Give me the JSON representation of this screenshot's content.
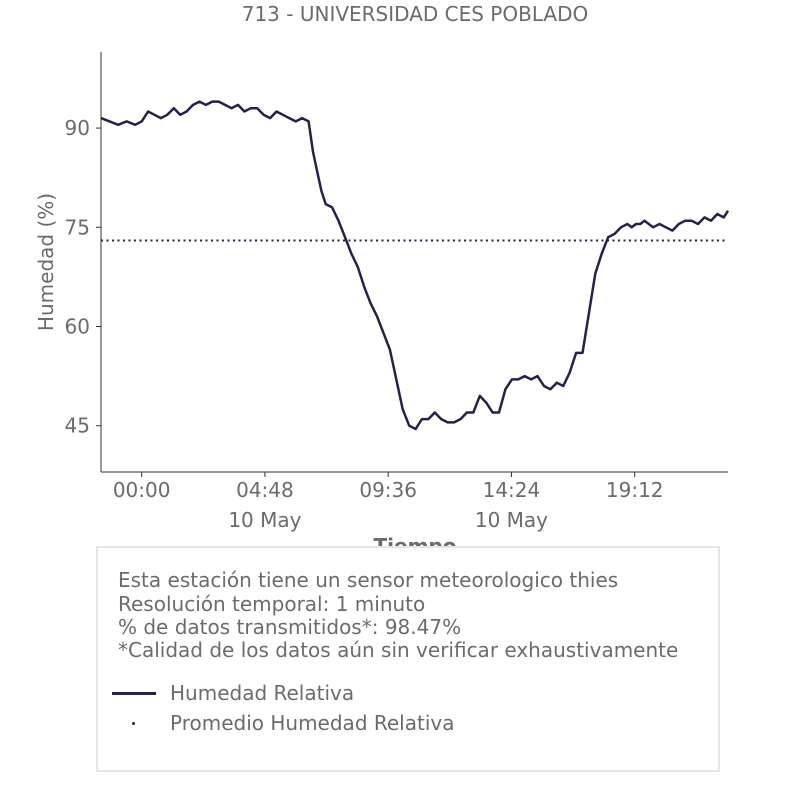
{
  "chart_data": {
    "type": "line",
    "title": "713 - UNIVERSIDAD CES POBLADO",
    "xlabel": "Tiempo",
    "ylabel": "Humedad (%)",
    "x_start": "2024-05-09 22:25",
    "x_end": "2024-05-10 22:50",
    "x_ticks": [
      "00:00",
      "04:48",
      "09:36",
      "14:24",
      "19:12"
    ],
    "x_tick_minutes": [
      0,
      288,
      576,
      864,
      1152
    ],
    "x_date_labels": [
      {
        "label": "10 May",
        "at_tick": "04:48"
      },
      {
        "label": "10 May",
        "at_tick": "14:24"
      }
    ],
    "y_ticks": [
      45,
      60,
      75,
      90
    ],
    "ylim": [
      38,
      101.5
    ],
    "xlim_minutes": [
      -95,
      1370
    ],
    "grid": false,
    "series": [
      {
        "name": "Humedad Relativa",
        "color": "#23234a",
        "style": "solid",
        "x_minutes": [
          -95,
          -75,
          -55,
          -35,
          -15,
          0,
          15,
          30,
          45,
          60,
          75,
          90,
          105,
          120,
          135,
          150,
          165,
          180,
          195,
          210,
          225,
          240,
          255,
          270,
          285,
          300,
          315,
          330,
          345,
          360,
          375,
          390,
          400,
          410,
          420,
          430,
          445,
          460,
          475,
          490,
          505,
          520,
          535,
          550,
          565,
          580,
          595,
          610,
          625,
          640,
          655,
          670,
          685,
          700,
          715,
          730,
          745,
          760,
          775,
          790,
          805,
          820,
          835,
          850,
          865,
          880,
          895,
          910,
          925,
          940,
          955,
          970,
          985,
          1000,
          1015,
          1030,
          1045,
          1060,
          1075,
          1090,
          1105,
          1120,
          1135,
          1145,
          1155,
          1165,
          1175,
          1185,
          1195,
          1210,
          1225,
          1240,
          1255,
          1270,
          1285,
          1300,
          1315,
          1330,
          1345,
          1360,
          1370
        ],
        "values": [
          91.5,
          91,
          90.5,
          91,
          90.5,
          91,
          92.5,
          92,
          91.5,
          92,
          93,
          92,
          92.5,
          93.5,
          94,
          93.5,
          94,
          94,
          93.5,
          93,
          93.5,
          92.5,
          93,
          93,
          92,
          91.5,
          92.5,
          92,
          91.5,
          91,
          91.5,
          91,
          86.5,
          83.5,
          80.5,
          78.5,
          78,
          76,
          73.5,
          71,
          69,
          66,
          63.5,
          61.5,
          59,
          56.5,
          52,
          47.5,
          45,
          44.5,
          46,
          46,
          47,
          46,
          45.5,
          45.5,
          46,
          47,
          47,
          49.5,
          48.5,
          47,
          47,
          50.5,
          52,
          52,
          52.5,
          52,
          52.5,
          51,
          50.5,
          51.5,
          51,
          53,
          56,
          56,
          62,
          68,
          71,
          73.5,
          74,
          75,
          75.5,
          75,
          75.5,
          75.5,
          76,
          75.5,
          75,
          75.5,
          75,
          74.5,
          75.5,
          76,
          76,
          75.5,
          76.5,
          76,
          77,
          76.5,
          77.5
        ]
      },
      {
        "name": "Promedio Humedad Relativa",
        "color": "#23234a",
        "style": "dotted",
        "constant_value": 73
      }
    ],
    "legend_placement": "below"
  },
  "info": {
    "lines": [
      "Esta estación tiene un sensor meteorologico thies",
      "Resolución temporal: 1 minuto",
      "% de datos transmitidos*: 98.47%",
      "*Calidad de los datos aún sin verificar exhaustivamente"
    ]
  },
  "legend": {
    "items": [
      "Humedad Relativa",
      "Promedio Humedad Relativa"
    ]
  }
}
